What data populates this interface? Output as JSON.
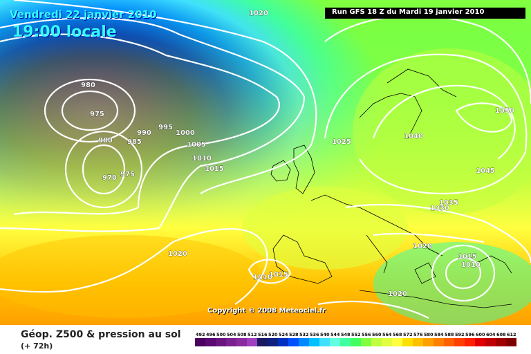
{
  "header": {
    "date_text": "Vendredi 22 janvier 2010",
    "time_text": "19:00 locale",
    "run_text": "Run GFS 18 Z du Mardi 19 janvier 2010"
  },
  "footer": {
    "title": "Géop. Z500 & pression au sol",
    "subtitle": "(+ 72h)",
    "copyright": "Copyright © 2008 Meteociel.fr"
  },
  "scale": {
    "values": [
      "492",
      "496",
      "500",
      "504",
      "508",
      "512",
      "516",
      "520",
      "524",
      "528",
      "532",
      "536",
      "540",
      "544",
      "548",
      "552",
      "556",
      "560",
      "564",
      "568",
      "572",
      "576",
      "580",
      "584",
      "588",
      "592",
      "596",
      "600",
      "604",
      "608",
      "612"
    ],
    "colors": [
      "#4b0060",
      "#5a0a70",
      "#6a1480",
      "#7a2090",
      "#8a2ca0",
      "#a040c0",
      "#1a1a60",
      "#102080",
      "#0030c0",
      "#0050ff",
      "#0088ff",
      "#00c0ff",
      "#40e0ff",
      "#60ffe0",
      "#40ffa0",
      "#40ff60",
      "#80ff40",
      "#c0ff40",
      "#e0ff40",
      "#ffff40",
      "#ffe000",
      "#ffc000",
      "#ffa000",
      "#ff8000",
      "#ff6000",
      "#ff4000",
      "#ff2000",
      "#e00000",
      "#c00000",
      "#a00000",
      "#800000"
    ]
  },
  "isobar_labels": [
    "1020",
    "980",
    "975",
    "990",
    "995",
    "1000",
    "980",
    "985",
    "1005",
    "1010",
    "1015",
    "970",
    "975",
    "1020",
    "1025",
    "1040",
    "1050",
    "1045",
    "1035",
    "1030",
    "1020",
    "1015",
    "1010",
    "1010",
    "1015",
    "1020"
  ],
  "map_colors": {
    "low_center": "#6a1480",
    "deep_blue": "#0030c0",
    "cyan": "#40e0ff",
    "green": "#40ff60",
    "yellow": "#ffff40",
    "orange": "#ffa000"
  }
}
